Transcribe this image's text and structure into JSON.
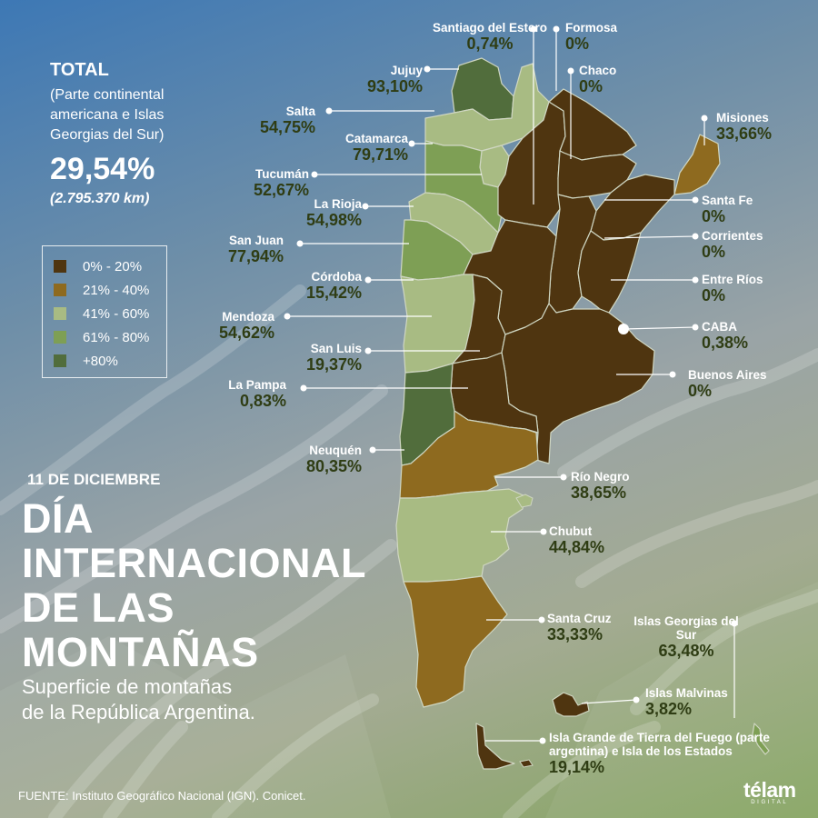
{
  "total": {
    "heading": "TOTAL",
    "subheading": "(Parte continental americana e Islas Georgias del Sur)",
    "percentage": "29,54%",
    "area": "(2.795.370 km)"
  },
  "legend": [
    {
      "label": "0% - 20%",
      "color": "#4f3510"
    },
    {
      "label": "21% - 40%",
      "color": "#8e6a1f"
    },
    {
      "label": "41% - 60%",
      "color": "#a8bb83"
    },
    {
      "label": "61% - 80%",
      "color": "#7e9f55"
    },
    {
      "label": "+80%",
      "color": "#516d3c"
    }
  ],
  "date": "11 DE DICIEMBRE",
  "headline": [
    "DÍA",
    "INTERNACIONAL",
    "DE LAS",
    "MONTAÑAS"
  ],
  "subtitle": [
    "Superficie de montañas",
    "de la República Argentina."
  ],
  "source": "FUENTE: Instituto Geográfico Nacional (IGN). Conicet.",
  "logo": {
    "word": "télam",
    "sub": "DIGITAL"
  },
  "provinces": [
    {
      "id": "jujuy",
      "name": "Jujuy",
      "value": "93,10%",
      "color": "#516d3c"
    },
    {
      "id": "salta",
      "name": "Salta",
      "value": "54,75%",
      "color": "#a8bb83"
    },
    {
      "id": "catamarca",
      "name": "Catamarca",
      "value": "79,71%",
      "color": "#7e9f55"
    },
    {
      "id": "tucuman",
      "name": "Tucumán",
      "value": "52,67%",
      "color": "#a8bb83"
    },
    {
      "id": "la-rioja",
      "name": "La Rioja",
      "value": "54,98%",
      "color": "#a8bb83"
    },
    {
      "id": "san-juan",
      "name": "San Juan",
      "value": "77,94%",
      "color": "#7e9f55"
    },
    {
      "id": "cordoba",
      "name": "Córdoba",
      "value": "15,42%",
      "color": "#4f3510"
    },
    {
      "id": "mendoza",
      "name": "Mendoza",
      "value": "54,62%",
      "color": "#a8bb83"
    },
    {
      "id": "san-luis",
      "name": "San Luis",
      "value": "19,37%",
      "color": "#4f3510"
    },
    {
      "id": "la-pampa",
      "name": "La Pampa",
      "value": "0,83%",
      "color": "#4f3510"
    },
    {
      "id": "neuquen",
      "name": "Neuquén",
      "value": "80,35%",
      "color": "#516d3c"
    },
    {
      "id": "santiago-del-estero",
      "name": "Santiago del Estero",
      "value": "0,74%",
      "color": "#4f3510"
    },
    {
      "id": "formosa",
      "name": "Formosa",
      "value": "0%",
      "color": "#4f3510"
    },
    {
      "id": "chaco",
      "name": "Chaco",
      "value": "0%",
      "color": "#4f3510"
    },
    {
      "id": "misiones",
      "name": "Misiones",
      "value": "33,66%",
      "color": "#8e6a1f"
    },
    {
      "id": "santa-fe",
      "name": "Santa Fe",
      "value": "0%",
      "color": "#4f3510"
    },
    {
      "id": "corrientes",
      "name": "Corrientes",
      "value": "0%",
      "color": "#4f3510"
    },
    {
      "id": "entre-rios",
      "name": "Entre Ríos",
      "value": "0%",
      "color": "#4f3510"
    },
    {
      "id": "caba",
      "name": "CABA",
      "value": "0,38%",
      "color": "#4f3510"
    },
    {
      "id": "buenos-aires",
      "name": "Buenos Aires",
      "value": "0%",
      "color": "#4f3510"
    },
    {
      "id": "rio-negro",
      "name": "Río Negro",
      "value": "38,65%",
      "color": "#8e6a1f"
    },
    {
      "id": "chubut",
      "name": "Chubut",
      "value": "44,84%",
      "color": "#a8bb83"
    },
    {
      "id": "santa-cruz",
      "name": "Santa Cruz",
      "value": "33,33%",
      "color": "#8e6a1f"
    },
    {
      "id": "islas-georgias",
      "name": "Islas Georgias del Sur",
      "value": "63,48%",
      "color": "#7e9f55"
    },
    {
      "id": "islas-malvinas",
      "name": "Islas Malvinas",
      "value": "3,82%",
      "color": "#4f3510"
    },
    {
      "id": "tierra-del-fuego",
      "name": "Isla Grande de Tierra del Fuego (parte argentina) e Isla de los Estados",
      "value": "19,14%",
      "color": "#4f3510"
    }
  ]
}
